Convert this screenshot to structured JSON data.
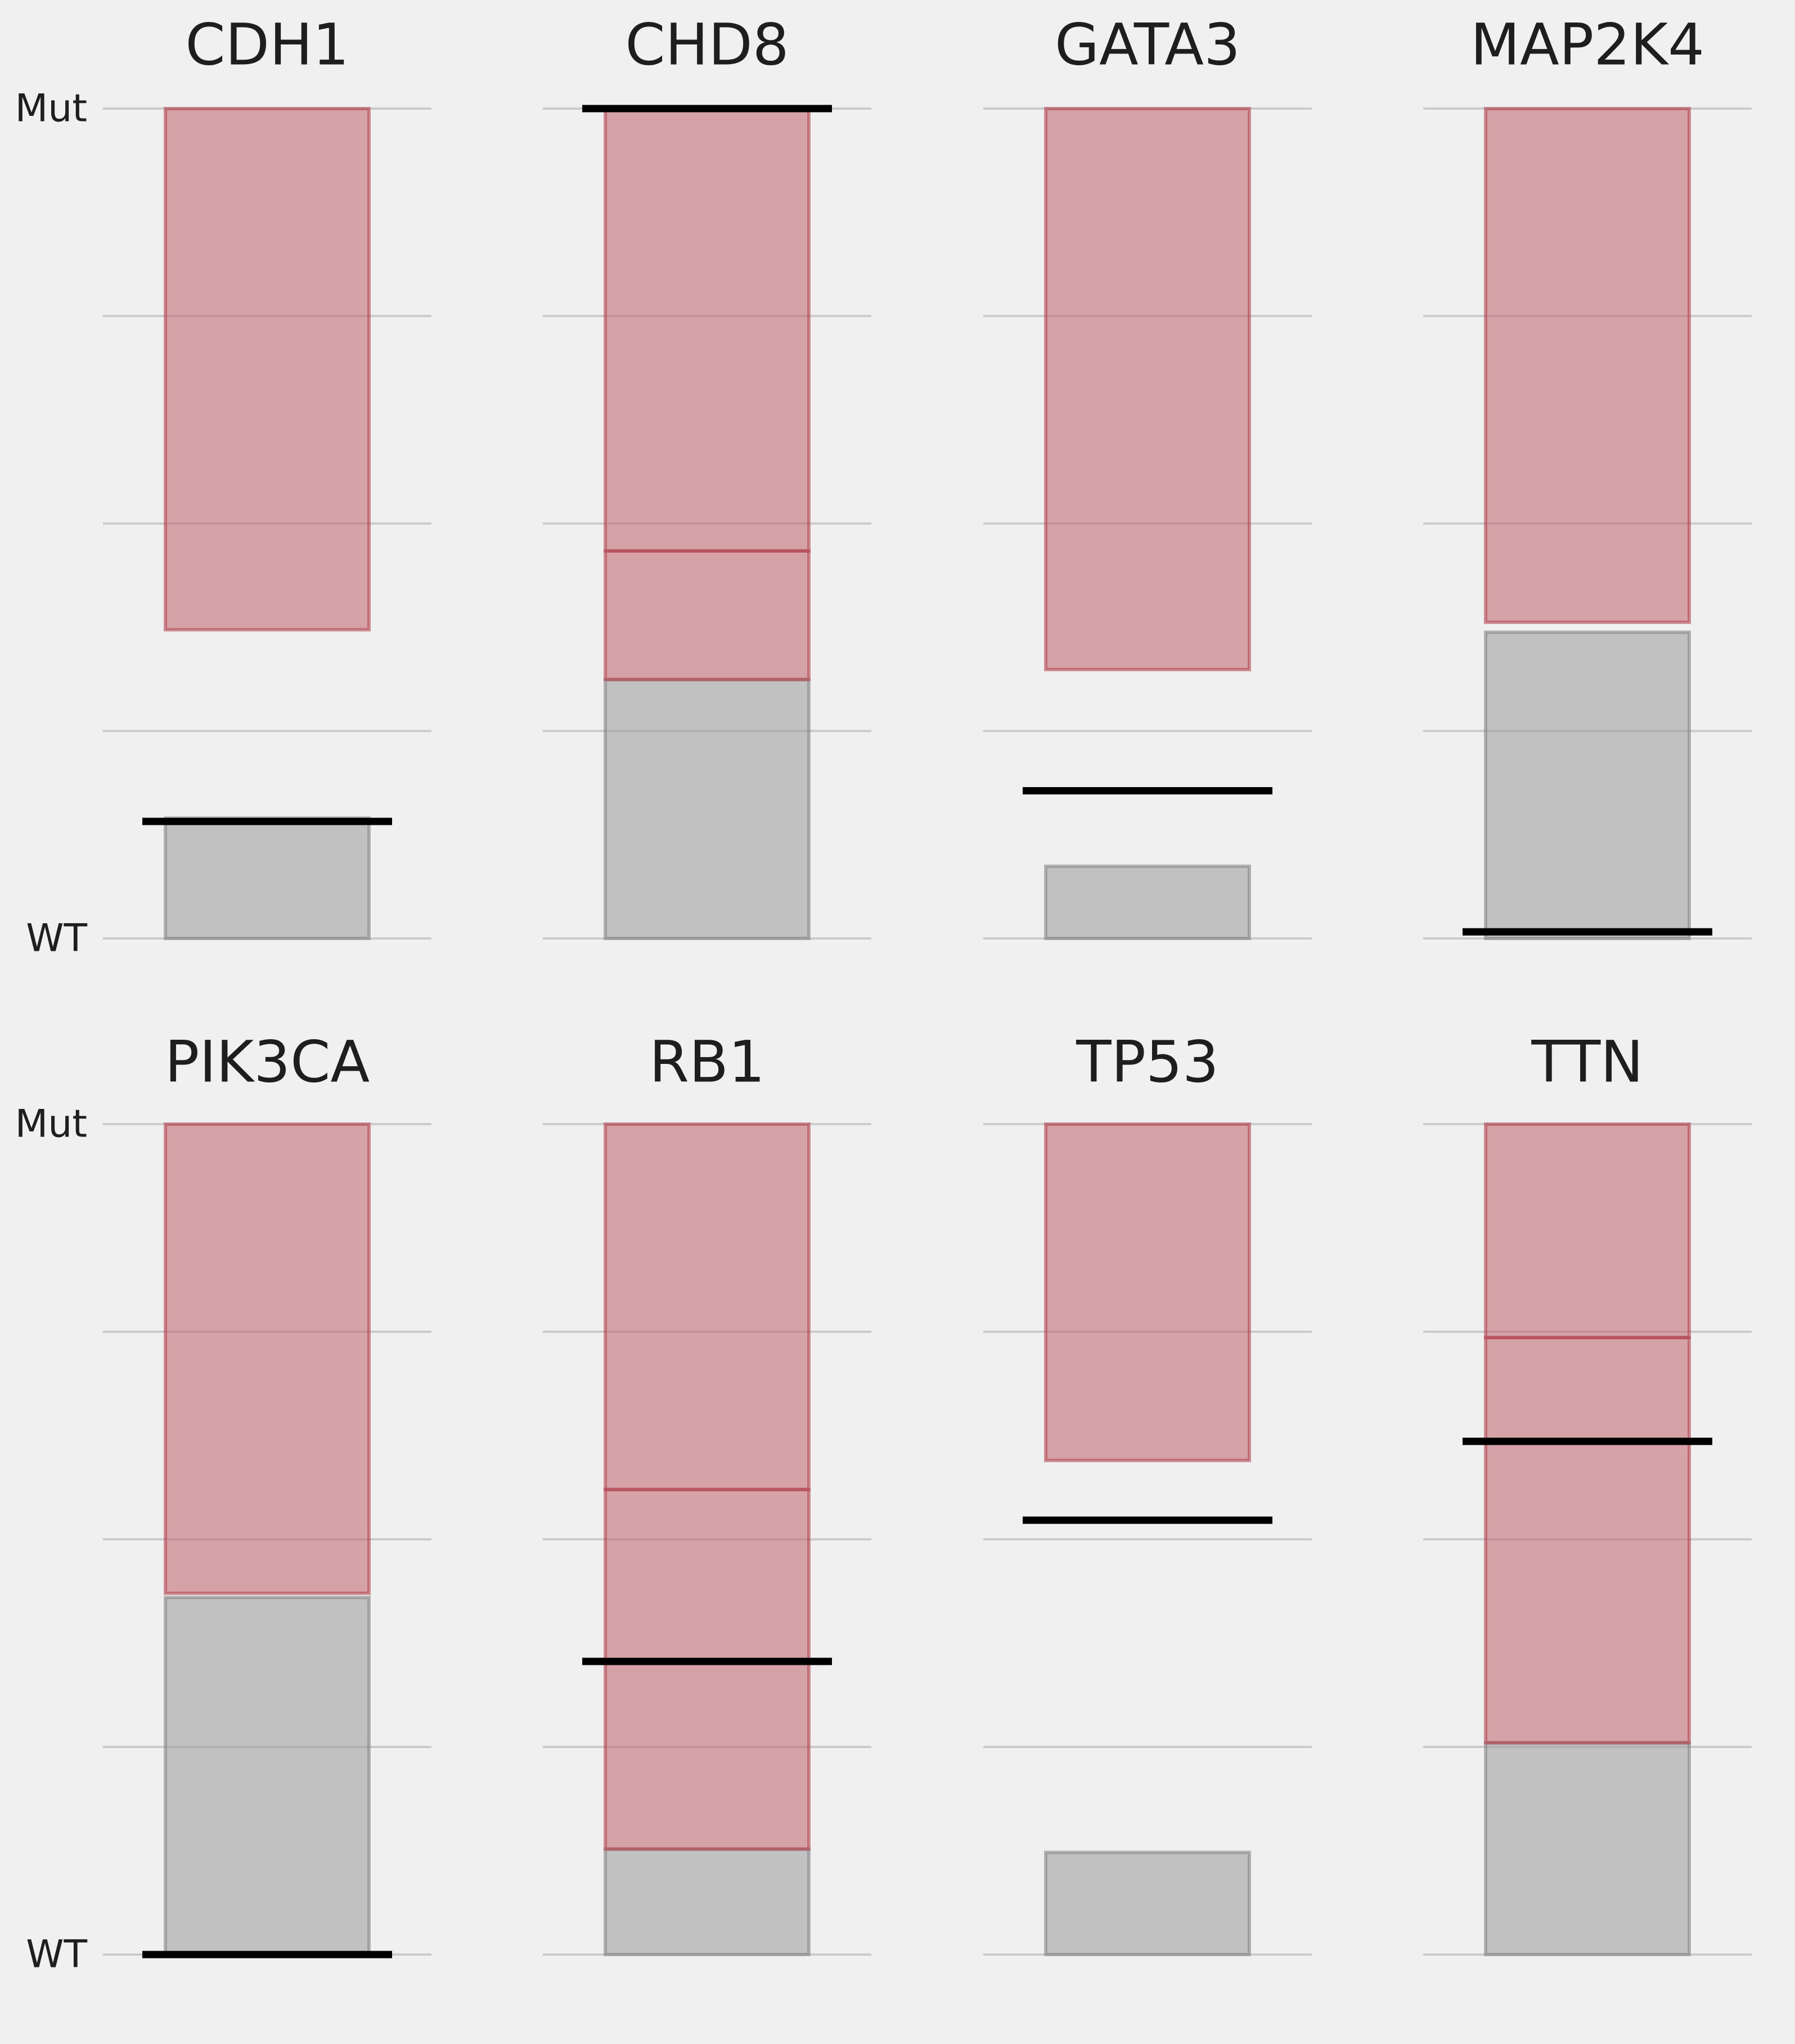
{
  "chart_data": {
    "type": "bar",
    "layout": {
      "rows": 2,
      "cols": 4
    },
    "y_tick_labels": {
      "top": "Mut",
      "bottom": "WT"
    },
    "ylim": [
      0,
      1
    ],
    "grid": true,
    "gridlines": [
      0,
      0.25,
      0.5,
      0.75,
      1
    ],
    "colors": {
      "background": "#f0f0f0",
      "mut_band_fill": "#c0646c",
      "mut_band_edge": "#b03c48",
      "wt_band_fill": "#9a9a9a",
      "wt_band_edge": "#808080",
      "threshold_line": "#000000",
      "gridline": "#cbcbcb",
      "text": "#1e1e1e"
    },
    "panels": [
      {
        "gene": "CDH1",
        "mut_range": [
          0.372,
          1.0
        ],
        "wt_range": [
          0.0,
          0.145
        ],
        "threshold": 0.141
      },
      {
        "gene": "CHD8",
        "mut_range": [
          0.312,
          0.467
        ],
        "wt_range": [
          0.0,
          0.312
        ],
        "threshold": 1.0,
        "mut_extra": [
          0.467,
          1.0
        ]
      },
      {
        "gene": "GATA3",
        "mut_range": [
          0.324,
          1.0
        ],
        "wt_range": [
          0.0,
          0.087
        ],
        "threshold": 0.178
      },
      {
        "gene": "MAP2K4",
        "mut_range": [
          0.381,
          1.0
        ],
        "wt_range": [
          0.0,
          0.369
        ],
        "threshold": 0.008
      },
      {
        "gene": "PIK3CA",
        "mut_range": [
          0.435,
          1.0
        ],
        "wt_range": [
          0.0,
          0.43
        ],
        "threshold": 0.0
      },
      {
        "gene": "RB1",
        "mut_range": [
          0.127,
          0.56
        ],
        "wt_range": [
          0.0,
          0.127
        ],
        "threshold": 0.353,
        "mut_extra": [
          0.56,
          1.0
        ]
      },
      {
        "gene": "TP53",
        "mut_range": [
          0.595,
          1.0
        ],
        "wt_range": [
          0.0,
          0.123
        ],
        "threshold": 0.523
      },
      {
        "gene": "TTN",
        "mut_range": [
          0.255,
          0.743
        ],
        "wt_range": [
          0.0,
          0.255
        ],
        "threshold": 0.618,
        "mut_extra": [
          0.743,
          1.0
        ]
      }
    ]
  }
}
